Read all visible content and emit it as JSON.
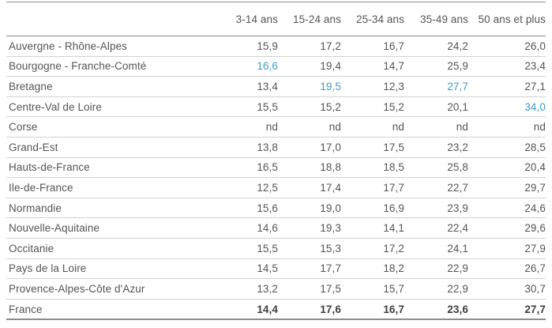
{
  "chart_data": {
    "type": "table",
    "title": "",
    "legend_note": "highlighted values shown in blue",
    "columns": [
      "3-14 ans",
      "15-24 ans",
      "25-34 ans",
      "35-49 ans",
      "50 ans et plus"
    ],
    "rows": [
      {
        "label": "Auvergne - Rhône-Alpes",
        "values": [
          "15,9",
          "17,2",
          "16,7",
          "24,2",
          "26,0"
        ],
        "highlight_cols": [],
        "bold": false
      },
      {
        "label": "Bourgogne - Franche-Comté",
        "values": [
          "16,6",
          "19,4",
          "14,7",
          "25,9",
          "23,4"
        ],
        "highlight_cols": [
          0
        ],
        "bold": false
      },
      {
        "label": "Bretagne",
        "values": [
          "13,4",
          "19,5",
          "12,3",
          "27,7",
          "27,1"
        ],
        "highlight_cols": [
          1,
          3
        ],
        "bold": false
      },
      {
        "label": "Centre-Val de Loire",
        "values": [
          "15,5",
          "15,2",
          "15,2",
          "20,1",
          "34,0"
        ],
        "highlight_cols": [
          4
        ],
        "bold": false
      },
      {
        "label": "Corse",
        "values": [
          "nd",
          "nd",
          "nd",
          "nd",
          "nd"
        ],
        "highlight_cols": [],
        "bold": false
      },
      {
        "label": "Grand-Est",
        "values": [
          "13,8",
          "17,0",
          "17,5",
          "23,2",
          "28,5"
        ],
        "highlight_cols": [],
        "bold": false
      },
      {
        "label": "Hauts-de-France",
        "values": [
          "16,5",
          "18,8",
          "18,5",
          "25,8",
          "20,4"
        ],
        "highlight_cols": [],
        "bold": false
      },
      {
        "label": "Ile-de-France",
        "values": [
          "12,5",
          "17,4",
          "17,7",
          "22,7",
          "29,7"
        ],
        "highlight_cols": [],
        "bold": false
      },
      {
        "label": "Normandie",
        "values": [
          "15,6",
          "19,0",
          "16,9",
          "23,9",
          "24,6"
        ],
        "highlight_cols": [],
        "bold": false
      },
      {
        "label": "Nouvelle-Aquitaine",
        "values": [
          "14,6",
          "19,3",
          "14,1",
          "22,4",
          "29,6"
        ],
        "highlight_cols": [],
        "bold": false
      },
      {
        "label": "Occitanie",
        "values": [
          "15,5",
          "15,3",
          "17,2",
          "24,1",
          "27,9"
        ],
        "highlight_cols": [],
        "bold": false
      },
      {
        "label": "Pays de la Loire",
        "values": [
          "14,5",
          "17,7",
          "18,2",
          "22,9",
          "26,7"
        ],
        "highlight_cols": [],
        "bold": false
      },
      {
        "label": "Provence-Alpes-Côte d'Azur",
        "values": [
          "13,2",
          "17,5",
          "15,7",
          "22,9",
          "30,7"
        ],
        "highlight_cols": [],
        "bold": false
      },
      {
        "label": "France",
        "values": [
          "14,4",
          "17,6",
          "16,7",
          "23,6",
          "27,7"
        ],
        "highlight_cols": [],
        "bold": true
      }
    ],
    "colors": {
      "text": "#555555",
      "highlight_blue": "#3f9dc7",
      "total_text": "#3e3e3e",
      "strong_border": "#8c8c8c",
      "light_border": "#d2d2d2"
    },
    "missing_value_marker": "nd"
  }
}
